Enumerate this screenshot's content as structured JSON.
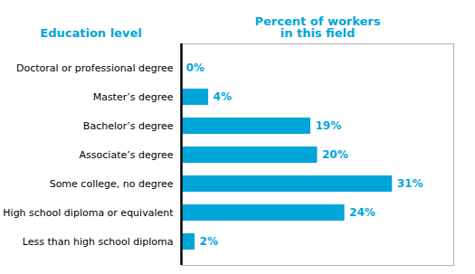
{
  "chart_data": {
    "type": "bar",
    "orientation": "horizontal",
    "categories": [
      "Doctoral or professional degree",
      "Master’s degree",
      "Bachelor’s degree",
      "Associate’s degree",
      "Some college, no degree",
      "High school diploma or equivalent",
      "Less than high school diploma"
    ],
    "values": [
      0,
      4,
      19,
      20,
      31,
      24,
      2
    ],
    "value_labels": [
      "0%",
      "4%",
      "19%",
      "20%",
      "31%",
      "24%",
      "2%"
    ],
    "data_labels": true,
    "color": "#00A5D9",
    "xlim": [
      0,
      40
    ],
    "xlabel": "Percent of workers\nin this field",
    "ylabel": "Education level",
    "tick_labels": "y",
    "grid": false
  }
}
